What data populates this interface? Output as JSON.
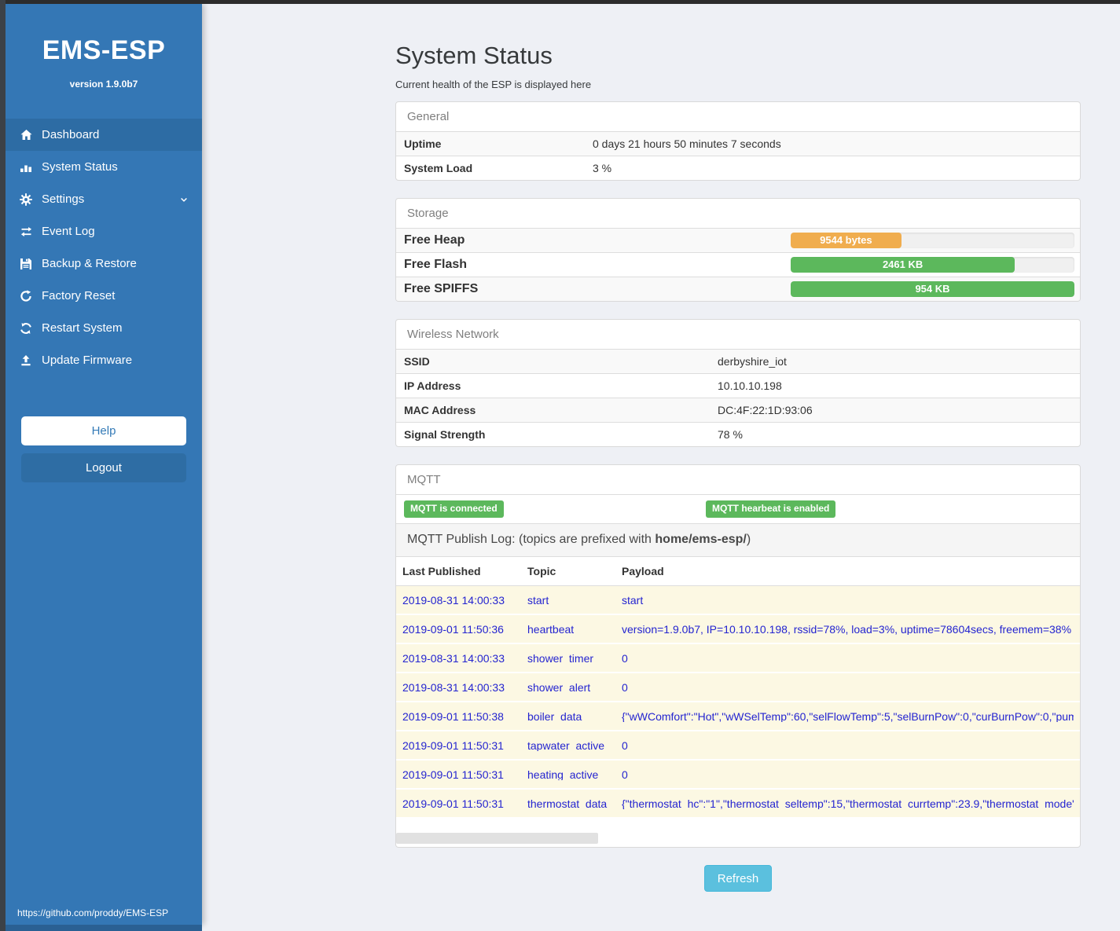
{
  "sidebar": {
    "title": "EMS-ESP",
    "version": "version 1.9.0b7",
    "items": [
      {
        "label": "Dashboard",
        "icon": "home-icon",
        "active": true
      },
      {
        "label": "System Status",
        "icon": "equalizer-icon",
        "active": false
      },
      {
        "label": "Settings",
        "icon": "gear-icon",
        "active": false,
        "chevron": "chevron-down-icon"
      },
      {
        "label": "Event Log",
        "icon": "swap-arrows-icon",
        "active": false
      },
      {
        "label": "Backup & Restore",
        "icon": "floppy-icon",
        "active": false
      },
      {
        "label": "Factory Reset",
        "icon": "redo-icon",
        "active": false
      },
      {
        "label": "Restart System",
        "icon": "sync-icon",
        "active": false
      },
      {
        "label": "Update Firmware",
        "icon": "upload-icon",
        "active": false
      }
    ],
    "help_label": "Help",
    "logout_label": "Logout",
    "footer_url": "https://github.com/proddy/EMS-ESP"
  },
  "header": {
    "title": "System Status",
    "subtitle": "Current health of the ESP is displayed here"
  },
  "panels": {
    "general": {
      "title": "General",
      "rows": [
        {
          "label": "Uptime",
          "value": "0 days 21 hours 50 minutes 7 seconds"
        },
        {
          "label": "System Load",
          "value": "3 %"
        }
      ]
    },
    "storage": {
      "title": "Storage",
      "rows": [
        {
          "label": "Free Heap",
          "bar_label": "9544 bytes",
          "percent": 39,
          "color": "#f0ad4e"
        },
        {
          "label": "Free Flash",
          "bar_label": "2461 KB",
          "percent": 79,
          "color": "#5cb85c"
        },
        {
          "label": "Free SPIFFS",
          "bar_label": "954 KB",
          "percent": 100,
          "color": "#5cb85c"
        }
      ]
    },
    "wireless": {
      "title": "Wireless Network",
      "rows": [
        {
          "label": "SSID",
          "value": "derbyshire_iot"
        },
        {
          "label": "IP Address",
          "value": "10.10.10.198"
        },
        {
          "label": "MAC Address",
          "value": "DC:4F:22:1D:93:06"
        },
        {
          "label": "Signal Strength",
          "value": "78 %"
        }
      ]
    },
    "mqtt": {
      "title": "MQTT",
      "badges": [
        {
          "label": "MQTT is connected"
        },
        {
          "label": "MQTT hearbeat is enabled"
        }
      ],
      "log_intro_prefix": "MQTT Publish Log: (topics are prefixed with ",
      "log_intro_bold": "home/ems-esp/",
      "log_intro_suffix": ")",
      "table": {
        "headers": [
          "Last Published",
          "Topic",
          "Payload"
        ],
        "rows": [
          [
            "2019-08-31 14:00:33",
            "start",
            "start"
          ],
          [
            "2019-09-01 11:50:36",
            "heartbeat",
            "version=1.9.0b7, IP=10.10.10.198, rssid=78%, load=3%, uptime=78604secs, freemem=38%"
          ],
          [
            "2019-08-31 14:00:33",
            "shower_timer",
            "0"
          ],
          [
            "2019-08-31 14:00:33",
            "shower_alert",
            "0"
          ],
          [
            "2019-09-01 11:50:38",
            "boiler_data",
            "{\"wWComfort\":\"Hot\",\"wWSelTemp\":60,\"selFlowTemp\":5,\"selBurnPow\":0,\"curBurnPow\":0,\"pump"
          ],
          [
            "2019-09-01 11:50:31",
            "tapwater_active",
            "0"
          ],
          [
            "2019-09-01 11:50:31",
            "heating_active",
            "0"
          ],
          [
            "2019-09-01 11:50:31",
            "thermostat_data",
            "{\"thermostat_hc\":\"1\",\"thermostat_seltemp\":15,\"thermostat_currtemp\":23.9,\"thermostat_mode\":\""
          ]
        ]
      }
    }
  },
  "refresh_label": "Refresh",
  "colors": {
    "sidebar_blue": "#3477b5",
    "active_item_blue": "#2d6ca4",
    "success_green": "#5cb85c",
    "warning_orange": "#f0ad4e",
    "refresh_cyan": "#5bc0de",
    "log_row_yellow": "#fcf8e3",
    "log_text_blue": "#2424d0"
  }
}
